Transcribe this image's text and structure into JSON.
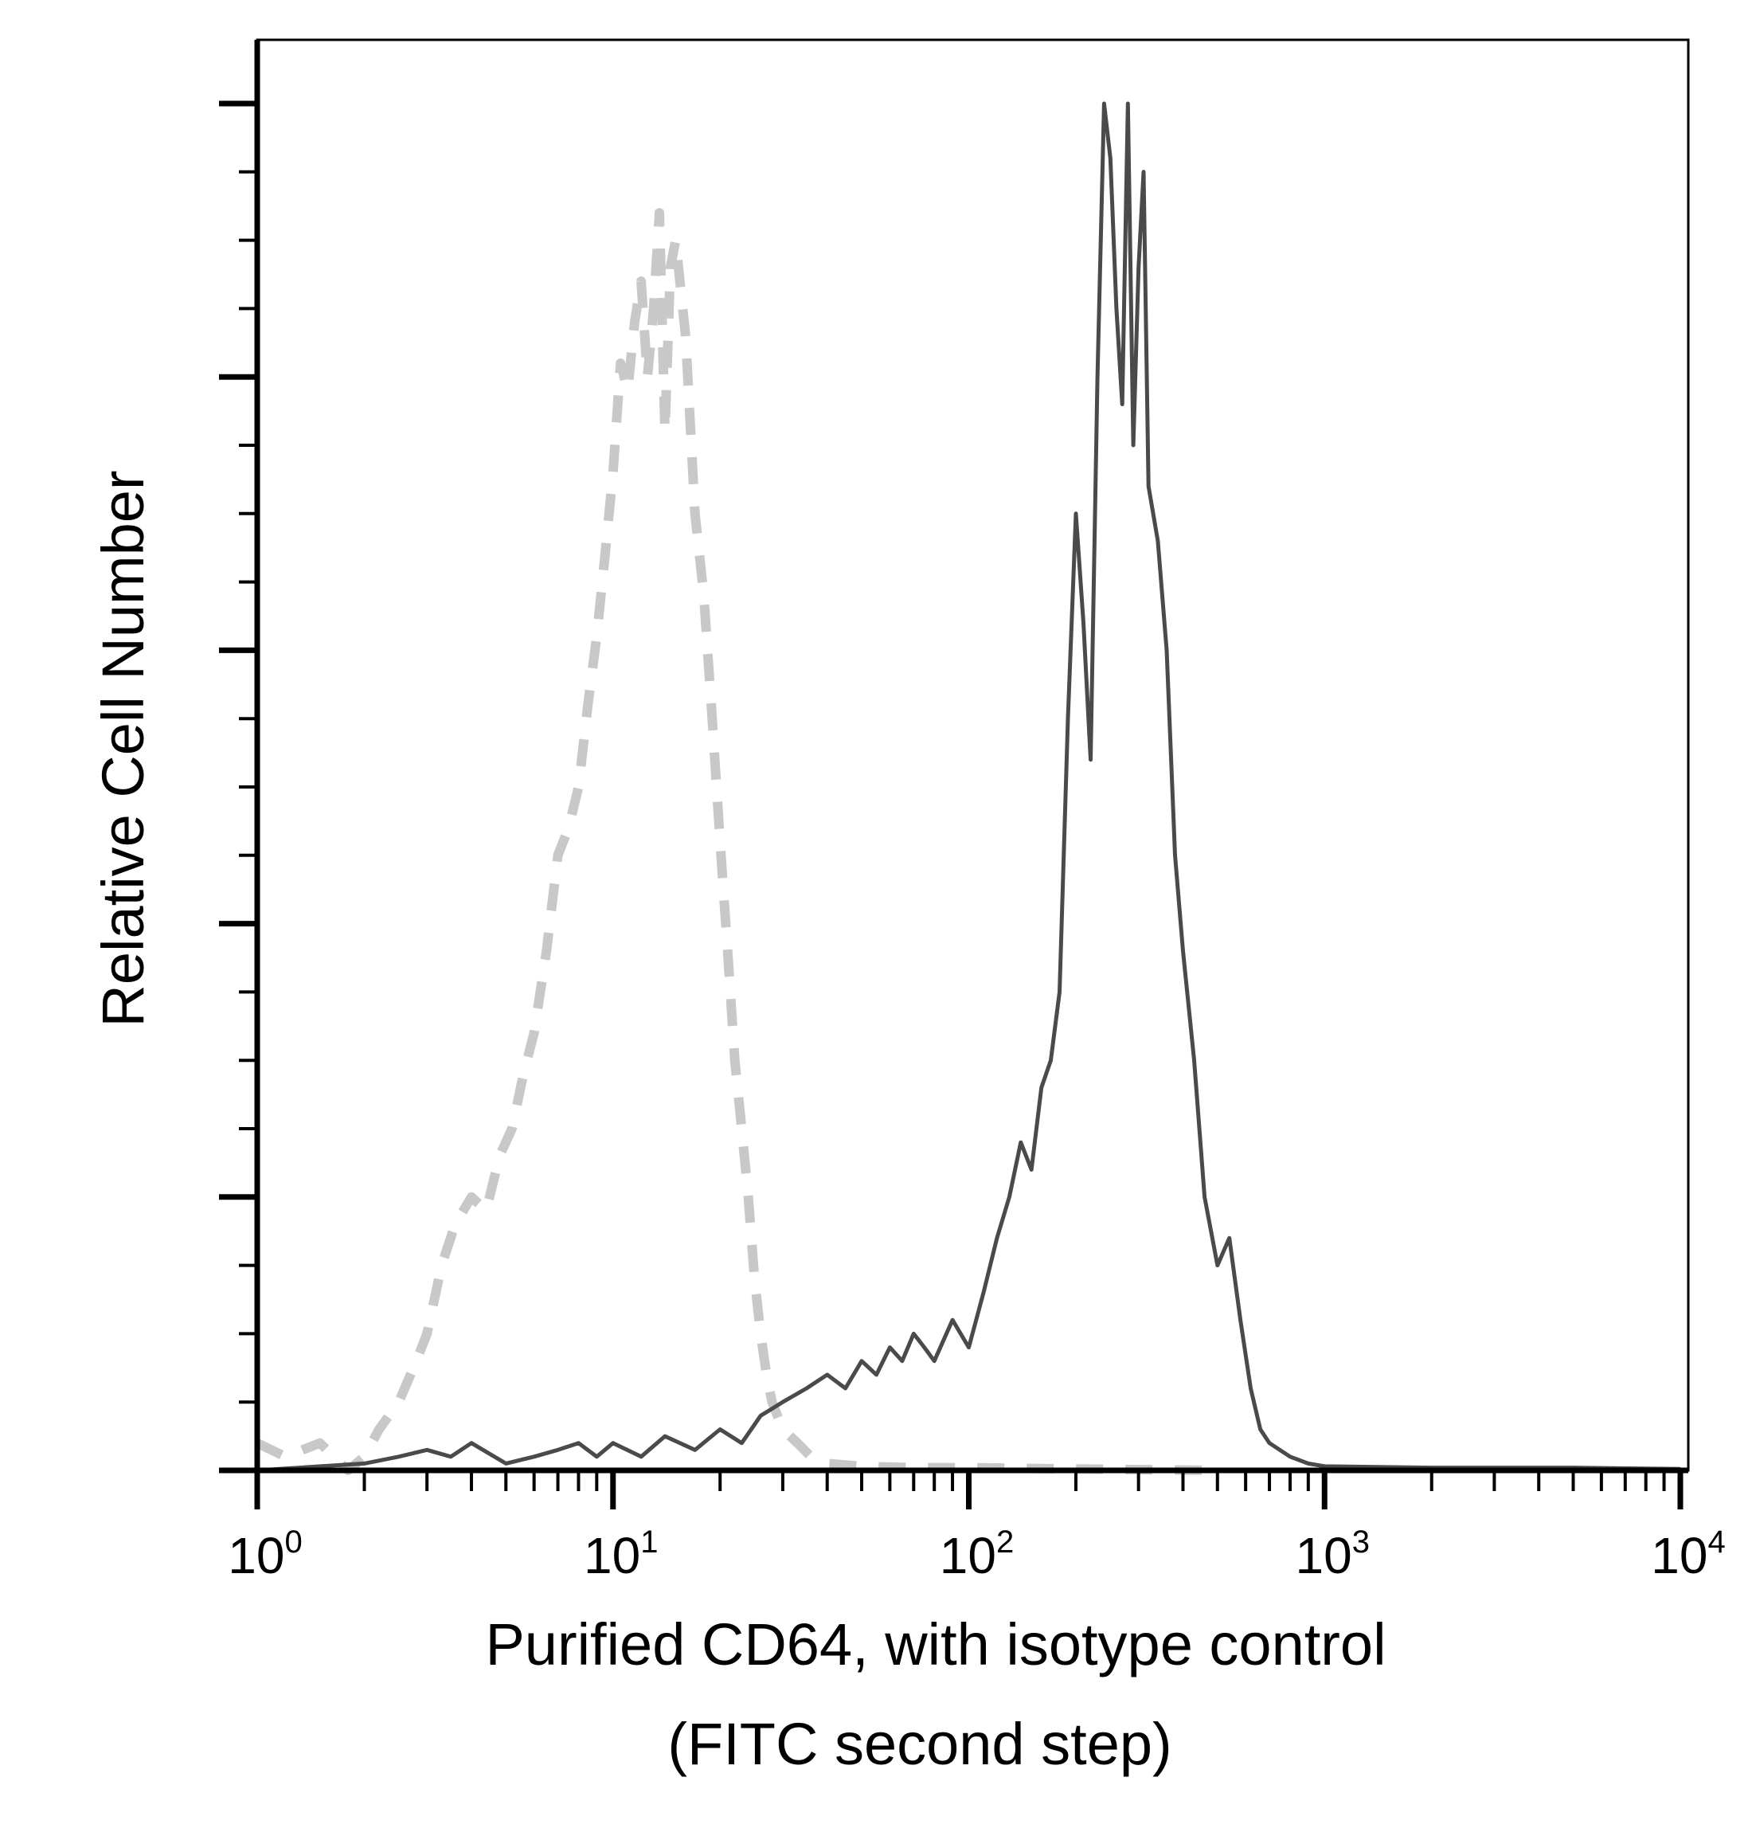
{
  "chart_data": {
    "type": "line",
    "title": "",
    "xlabel_line1": "Purified CD64, with isotype control",
    "xlabel_line2": "(FITC second step)",
    "ylabel": "Relative Cell Number",
    "x_scale": "log",
    "xlim": [
      1,
      10000
    ],
    "ylim": [
      0,
      100
    ],
    "grid": false,
    "legend": "none",
    "x_ticks": [
      {
        "base": "10",
        "exp": "0"
      },
      {
        "base": "10",
        "exp": "1"
      },
      {
        "base": "10",
        "exp": "2"
      },
      {
        "base": "10",
        "exp": "3"
      },
      {
        "base": "10",
        "exp": "4"
      }
    ],
    "series": [
      {
        "style": "dashed",
        "color": "#c8c8c8",
        "x": [
          1.0,
          1.2,
          1.5,
          1.8,
          2.0,
          2.2,
          2.5,
          2.8,
          3.0,
          3.3,
          3.6,
          4.0,
          4.4,
          4.8,
          5.2,
          5.6,
          6.0,
          6.5,
          7.0,
          7.5,
          8.0,
          8.5,
          9.0,
          9.5,
          10.0,
          10.5,
          11.0,
          11.5,
          12.0,
          12.5,
          13.0,
          13.5,
          14.0,
          14.5,
          15.0,
          16.0,
          17.0,
          18.0,
          19.0,
          20.0,
          21.0,
          22.0,
          23.0,
          24.0,
          25.0,
          26.0,
          27.0,
          28.0,
          30.0,
          33.0,
          36.0,
          40.0,
          50.0,
          70.0,
          100.0,
          200.0,
          500.0
        ],
        "y": [
          2,
          1,
          2,
          0,
          1,
          3,
          5,
          8,
          10,
          15,
          18,
          20,
          19,
          23,
          25,
          29,
          32,
          38,
          45,
          47,
          50,
          56,
          61,
          67,
          73,
          81,
          79,
          84,
          87,
          80,
          85,
          92,
          76,
          88,
          90,
          83,
          70,
          64,
          55,
          46,
          38,
          30,
          25,
          20,
          14,
          10,
          7,
          5,
          3,
          2,
          1,
          0.5,
          0.3,
          0.2,
          0.2,
          0.1,
          0
        ]
      },
      {
        "style": "solid",
        "color": "#4a4a4a",
        "x": [
          1.0,
          2.0,
          2.5,
          3.0,
          3.5,
          4.0,
          5.0,
          6.0,
          7.0,
          8.0,
          9.0,
          10.0,
          12.0,
          14.0,
          17.0,
          20.0,
          23.0,
          26.0,
          30.0,
          35.0,
          40.0,
          45.0,
          50.0,
          55.0,
          60.0,
          65.0,
          70.0,
          75.0,
          80.0,
          90.0,
          100.0,
          110.0,
          120.0,
          130.0,
          140.0,
          150.0,
          160.0,
          170.0,
          180.0,
          190.0,
          200.0,
          210.0,
          220.0,
          230.0,
          240.0,
          250.0,
          260.0,
          270.0,
          280.0,
          290.0,
          300.0,
          310.0,
          320.0,
          340.0,
          360.0,
          380.0,
          400.0,
          430.0,
          460.0,
          500.0,
          540.0,
          580.0,
          620.0,
          660.0,
          700.0,
          800.0,
          900.0,
          1000.0,
          2000.0,
          5000.0,
          10000.0
        ],
        "y": [
          0,
          0.5,
          1,
          1.5,
          1,
          2,
          0.5,
          1,
          1.5,
          2,
          1,
          2,
          1,
          2.5,
          1.5,
          3,
          2,
          4,
          5,
          6,
          7,
          6,
          8,
          7,
          9,
          8,
          10,
          9,
          8,
          11,
          9,
          13,
          17,
          20,
          24,
          22,
          28,
          30,
          35,
          55,
          70,
          62,
          52,
          80,
          100,
          96,
          85,
          78,
          100,
          75,
          88,
          95,
          72,
          68,
          60,
          45,
          38,
          30,
          20,
          15,
          17,
          11,
          6,
          3,
          2,
          1,
          0.5,
          0.3,
          0.2,
          0.2,
          0.1
        ]
      }
    ]
  }
}
